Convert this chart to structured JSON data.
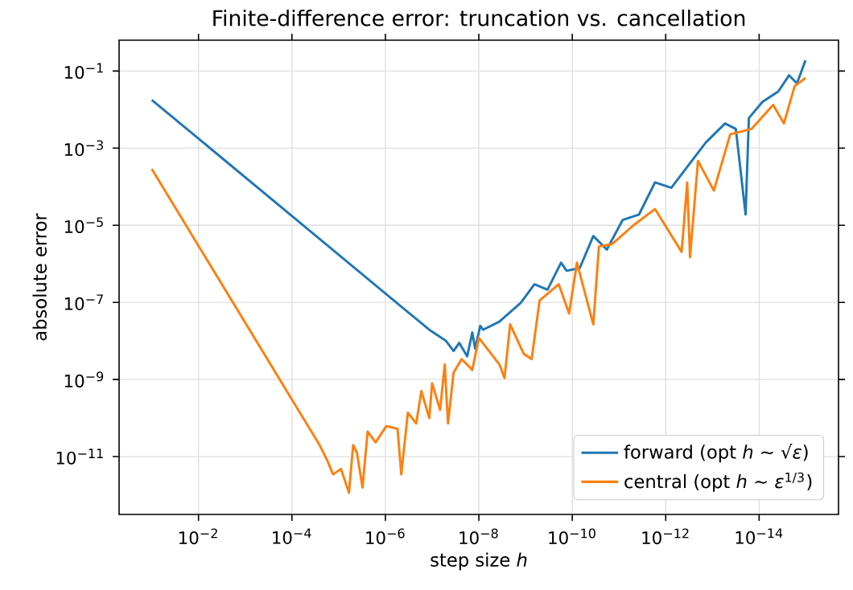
{
  "chart_data": {
    "type": "line",
    "title": "Finite-difference error: truncation vs. cancellation",
    "xlabel": "step size *h*",
    "ylabel": "absolute error",
    "log": "xy",
    "grid": true,
    "legend": "bottom right",
    "xlim": [
      0.501,
      2e-16
    ],
    "ylim": [
      3.16e-13,
      0.631
    ],
    "xticks": [
      {
        "value": 0.01,
        "label": "10$^{−2}$"
      },
      {
        "value": 0.0001,
        "label": "10$^{−4}$"
      },
      {
        "value": 1e-06,
        "label": "10$^{−6}$"
      },
      {
        "value": 1e-08,
        "label": "10$^{−8}$"
      },
      {
        "value": 1e-10,
        "label": "10$^{−10}$"
      },
      {
        "value": 1e-12,
        "label": "10$^{−12}$"
      },
      {
        "value": 1e-14,
        "label": "10$^{−14}$"
      }
    ],
    "yticks": [
      {
        "value": 0.1,
        "label": "10$^{−1}$"
      },
      {
        "value": 0.001,
        "label": "10$^{−3}$"
      },
      {
        "value": 1e-05,
        "label": "10$^{−5}$"
      },
      {
        "value": 1e-07,
        "label": "10$^{−7}$"
      },
      {
        "value": 1e-09,
        "label": "10$^{−9}$"
      },
      {
        "value": 1e-11,
        "label": "10$^{−11}$"
      }
    ],
    "series": [
      {
        "name": "forward (opt *h* ~ √*ε*)",
        "color": "#1f77b4",
        "x": [
          0.1,
          1.15e-07,
          5.13e-08,
          3.47e-08,
          2.63e-08,
          1.78e-08,
          1.38e-08,
          1.2e-08,
          9.33e-09,
          8.13e-09,
          3.63e-09,
          1.26e-09,
          6.46e-10,
          3.39e-10,
          1.74e-10,
          1.32e-10,
          6.92e-11,
          3.55e-11,
          1.82e-11,
          8.32e-12,
          3.72e-12,
          1.7e-12,
          7.59e-13,
          3.39e-13,
          1.38e-13,
          5.37e-14,
          3.16e-14,
          1.95e-14,
          1.66e-14,
          8.51e-15,
          3.89e-15,
          2.29e-15,
          1.55e-15,
          1.02e-15
        ],
        "values": [
          0.0178,
          1.95e-08,
          1.02e-08,
          5.5e-09,
          8.91e-09,
          3.98e-09,
          1.66e-08,
          6.31e-09,
          2.45e-08,
          1.95e-08,
          3.16e-08,
          9.77e-08,
          2.95e-07,
          2.14e-07,
          1.07e-06,
          6.61e-07,
          7.76e-07,
          5.25e-06,
          2.34e-06,
          1.38e-05,
          1.91e-05,
          0.000129,
          9.33e-05,
          0.000339,
          0.00141,
          0.00437,
          0.00316,
          1.91e-05,
          0.00603,
          0.0158,
          0.0295,
          0.0776,
          0.0479,
          0.191
        ]
      },
      {
        "name": "central (opt *h* ~ *ε*$^{1/3}$)",
        "color": "#ff7f0e",
        "x": [
          0.1,
          2.57e-05,
          1.74e-05,
          1.32e-05,
          8.91e-06,
          6.03e-06,
          4.9e-06,
          4.07e-06,
          3.09e-06,
          2.4e-06,
          1.62e-06,
          9.55e-07,
          5.5e-07,
          4.57e-07,
          3.31e-07,
          2.19e-07,
          1.7e-07,
          1.15e-07,
          1e-07,
          6.76e-08,
          5.37e-08,
          4.57e-08,
          3.47e-08,
          2.34e-08,
          1.38e-08,
          1e-08,
          3.63e-09,
          2.82e-09,
          2.14e-09,
          1.1e-09,
          7.41e-10,
          5.01e-10,
          1.95e-10,
          1.17e-10,
          7.94e-11,
          3.55e-11,
          2.69e-11,
          1.41e-11,
          4.9e-12,
          1.7e-12,
          4.57e-13,
          3.47e-13,
          3.02e-13,
          2.04e-13,
          9.33e-14,
          4.17e-14,
          1.45e-14,
          5.01e-15,
          2.95e-15,
          1.74e-15,
          1.02e-15
        ],
        "values": [
          0.000288,
          2e-11,
          7.76e-12,
          3.47e-12,
          4.79e-12,
          1.15e-12,
          2e-11,
          1.26e-11,
          1.58e-12,
          4.47e-11,
          2.34e-11,
          6.17e-11,
          5.25e-11,
          3.47e-12,
          1.38e-10,
          7.24e-11,
          5.01e-10,
          1e-10,
          7.94e-10,
          1.62e-10,
          2.45e-09,
          7.24e-11,
          1.51e-09,
          3.39e-09,
          1.78e-09,
          1.2e-08,
          2.45e-09,
          1.1e-09,
          2.69e-08,
          4.68e-09,
          3.39e-09,
          1.12e-07,
          2.95e-07,
          5.13e-08,
          1.07e-06,
          2.69e-08,
          2.82e-06,
          3.24e-06,
          1e-05,
          2.63e-05,
          2.04e-06,
          0.000129,
          1.48e-06,
          0.000468,
          7.94e-05,
          0.00229,
          0.00316,
          0.0132,
          0.00437,
          0.0407,
          0.0661
        ]
      }
    ]
  }
}
